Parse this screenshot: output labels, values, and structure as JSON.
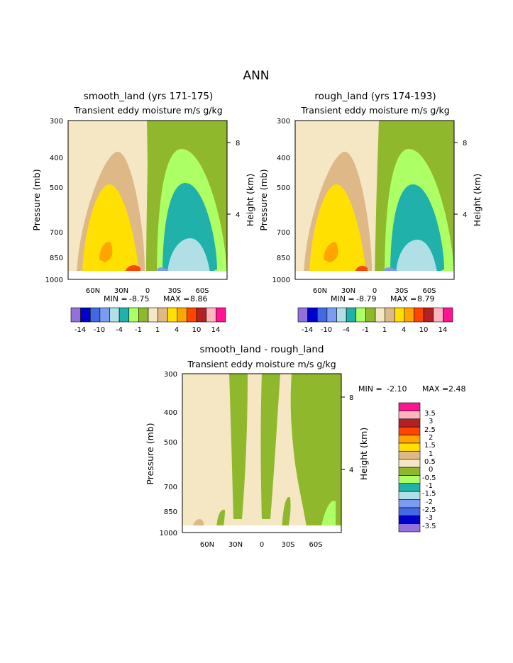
{
  "title": "ANN",
  "palette_ab": [
    "#9370db",
    "#0000cd",
    "#4169e1",
    "#7b9cf0",
    "#b0e0e6",
    "#20b2aa",
    "#adff66",
    "#90b82c",
    "#f5e6c4",
    "#deb887",
    "#ffe000",
    "#ffa500",
    "#ff4500",
    "#b22222",
    "#ffb6c1",
    "#ff1493"
  ],
  "palette_diff": [
    "#9370db",
    "#0000cd",
    "#4169e1",
    "#7b9cf0",
    "#b0e0e6",
    "#20b2aa",
    "#adff66",
    "#90b82c",
    "#f5e6c4",
    "#deb887",
    "#ffe000",
    "#ffa500",
    "#ff4500",
    "#b22222",
    "#ffb6c1",
    "#ff1493"
  ],
  "chart_data": [
    {
      "type": "contour",
      "title": "smooth_land (yrs 171-175)",
      "subtitle": "Transient eddy moisture m/s g/kg",
      "ylabel": "Pressure (mb)",
      "ylabel_right": "Height (km)",
      "x_ticks": [
        "60N",
        "30N",
        "0",
        "30S",
        "60S"
      ],
      "y_ticks": [
        "300",
        "400",
        "500",
        "700",
        "850",
        "1000"
      ],
      "y_right_ticks": [
        "8",
        "4"
      ],
      "stats": {
        "min_label": "MIN =",
        "min": "-8.75",
        "max_label": "MAX =",
        "max": "8.86"
      },
      "colorbar_labels": [
        "-14",
        "-10",
        "-4",
        "-1",
        "1",
        "4",
        "10",
        "14"
      ]
    },
    {
      "type": "contour",
      "title": "rough_land (yrs 174-193)",
      "subtitle": "Transient eddy moisture m/s g/kg",
      "ylabel": "Pressure (mb)",
      "ylabel_right": "Height (km)",
      "x_ticks": [
        "60N",
        "30N",
        "0",
        "30S",
        "60S"
      ],
      "y_ticks": [
        "300",
        "400",
        "500",
        "700",
        "850",
        "1000"
      ],
      "y_right_ticks": [
        "8",
        "4"
      ],
      "stats": {
        "min_label": "MIN =",
        "min": "-8.79",
        "max_label": "MAX =",
        "max": "8.79"
      },
      "colorbar_labels": [
        "-14",
        "-10",
        "-4",
        "-1",
        "1",
        "4",
        "10",
        "14"
      ]
    },
    {
      "type": "contour",
      "title": "smooth_land - rough_land",
      "subtitle": "Transient eddy moisture m/s g/kg",
      "ylabel": "Pressure (mb)",
      "ylabel_right": "Height (km)",
      "x_ticks": [
        "60N",
        "30N",
        "0",
        "30S",
        "60S"
      ],
      "y_ticks": [
        "300",
        "400",
        "500",
        "700",
        "850",
        "1000"
      ],
      "y_right_ticks": [
        "8",
        "4"
      ],
      "stats": {
        "min_label": "MIN =",
        "min": "-2.10",
        "max_label": "MAX =",
        "max": "2.48"
      },
      "colorbar_labels": [
        "3.5",
        "3",
        "2.5",
        "2",
        "1.5",
        "1",
        "0.5",
        "0",
        "-0.5",
        "-1",
        "-1.5",
        "-2",
        "-2.5",
        "-3",
        "-3.5"
      ]
    }
  ]
}
